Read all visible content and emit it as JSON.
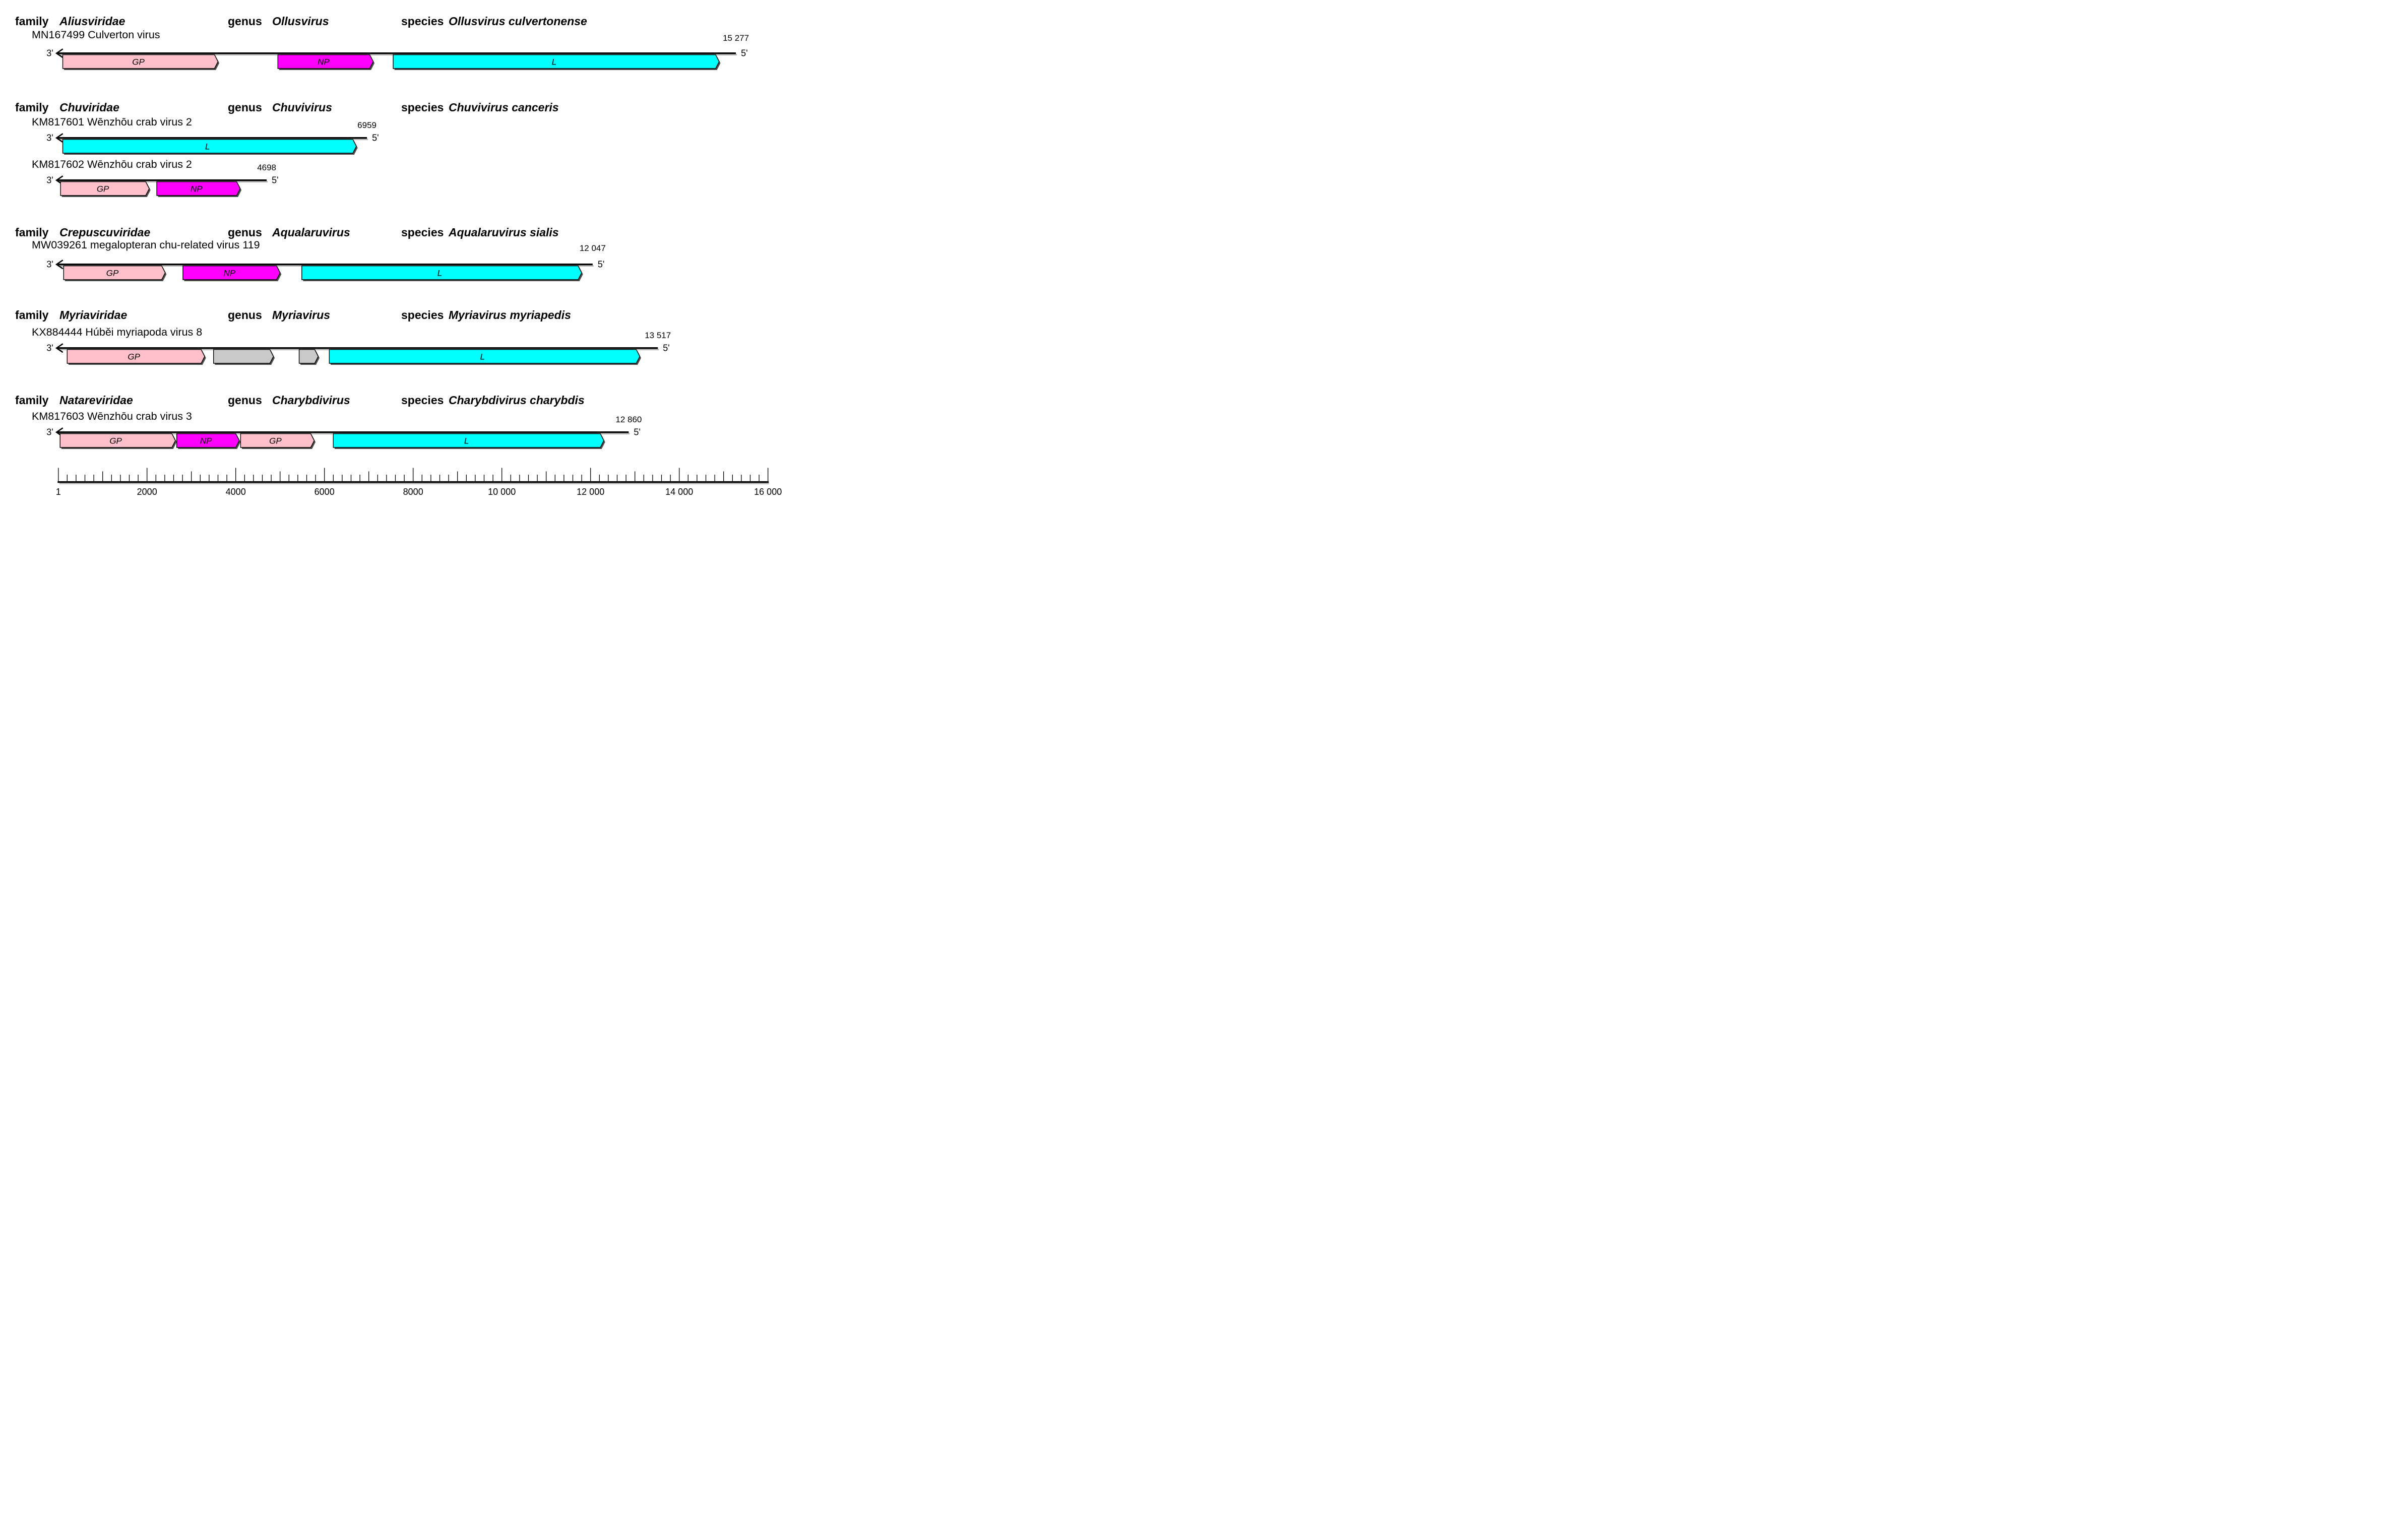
{
  "row_labels": {
    "family": "family",
    "genus": "genus",
    "species": "species",
    "three_prime": "3'",
    "five_prime": "5'"
  },
  "colors": {
    "GP": "#FFC0CB",
    "NP": "#FF00FF",
    "L": "#00FFFF",
    "ORF": "#C9C9C9",
    "line": "#000000",
    "block_shadow": "#4d4d4d",
    "line_shadow": "#b9b9b9"
  },
  "sections": [
    {
      "family": "Aliusviridae",
      "genus": "Ollusvirus",
      "species": "Ollusvirus culvertonense",
      "segments": [
        {
          "accession": "MN167499 Culverton virus",
          "length_label": "15 277",
          "length_nt": 15277,
          "blocks": [
            {
              "gene": "GP",
              "color": "GP",
              "start": 100,
              "end": 3600
            },
            {
              "gene": "NP",
              "color": "NP",
              "start": 4950,
              "end": 7100
            },
            {
              "gene": "L",
              "color": "L",
              "start": 7550,
              "end": 14900
            }
          ]
        }
      ]
    },
    {
      "family": "Chuviridae",
      "genus": "Chuvivirus",
      "species": "Chuvivirus canceris",
      "segments": [
        {
          "accession": "KM817601 Wēnzhōu crab virus 2",
          "length_label": "6959",
          "length_nt": 6959,
          "blocks": [
            {
              "gene": "L",
              "color": "L",
              "start": 100,
              "end": 6720
            }
          ]
        },
        {
          "accession": "KM817602 Wēnzhōu crab virus 2",
          "length_label": "4698",
          "length_nt": 4698,
          "blocks": [
            {
              "gene": "GP",
              "color": "GP",
              "start": 50,
              "end": 2050
            },
            {
              "gene": "NP",
              "color": "NP",
              "start": 2220,
              "end": 4100
            }
          ]
        }
      ]
    },
    {
      "family": "Crepuscuviridae",
      "genus": "Aqualaruvirus",
      "species": "Aqualaruvirus sialis",
      "segments": [
        {
          "accession": "MW039261 megalopteran chu-related virus 119",
          "length_label": "12 047",
          "length_nt": 12047,
          "blocks": [
            {
              "gene": "GP",
              "color": "GP",
              "start": 120,
              "end": 2410
            },
            {
              "gene": "NP",
              "color": "NP",
              "start": 2810,
              "end": 5000
            },
            {
              "gene": "L",
              "color": "L",
              "start": 5490,
              "end": 11800
            }
          ]
        }
      ]
    },
    {
      "family": "Myriaviridae",
      "genus": "Myriavirus",
      "species": "Myriavirus myriapedis",
      "segments": [
        {
          "accession": "KX884444 Húběi myriapoda virus 8",
          "length_label": "13 517",
          "length_nt": 13517,
          "blocks": [
            {
              "gene": "GP",
              "color": "GP",
              "start": 200,
              "end": 3300
            },
            {
              "gene": "",
              "color": "ORF",
              "start": 3500,
              "end": 4850
            },
            {
              "gene": "",
              "color": "ORF",
              "start": 5430,
              "end": 5860
            },
            {
              "gene": "L",
              "color": "L",
              "start": 6110,
              "end": 13110
            }
          ]
        }
      ]
    },
    {
      "family": "Natareviridae",
      "genus": "Charybdivirus",
      "species": "Charybdivirus charybdis",
      "segments": [
        {
          "accession": "KM817603 Wēnzhōu crab virus 3",
          "length_label": "12 860",
          "length_nt": 12860,
          "blocks": [
            {
              "gene": "GP",
              "color": "GP",
              "start": 40,
              "end": 2640
            },
            {
              "gene": "NP",
              "color": "NP",
              "start": 2670,
              "end": 4080
            },
            {
              "gene": "GP",
              "color": "GP",
              "start": 4110,
              "end": 5770
            },
            {
              "gene": "L",
              "color": "L",
              "start": 6200,
              "end": 12300
            }
          ]
        }
      ]
    }
  ],
  "ruler": {
    "min": 1,
    "max": 16000,
    "minor_step": 200,
    "mid_step": 1000,
    "major_step": 2000,
    "labels": [
      {
        "value": 1,
        "text": "1"
      },
      {
        "value": 2000,
        "text": "2000"
      },
      {
        "value": 4000,
        "text": "4000"
      },
      {
        "value": 6000,
        "text": "6000"
      },
      {
        "value": 8000,
        "text": "8000"
      },
      {
        "value": 10000,
        "text": "10 000"
      },
      {
        "value": 12000,
        "text": "12 000"
      },
      {
        "value": 14000,
        "text": "14 000"
      },
      {
        "value": 16000,
        "text": "16 000"
      }
    ]
  }
}
